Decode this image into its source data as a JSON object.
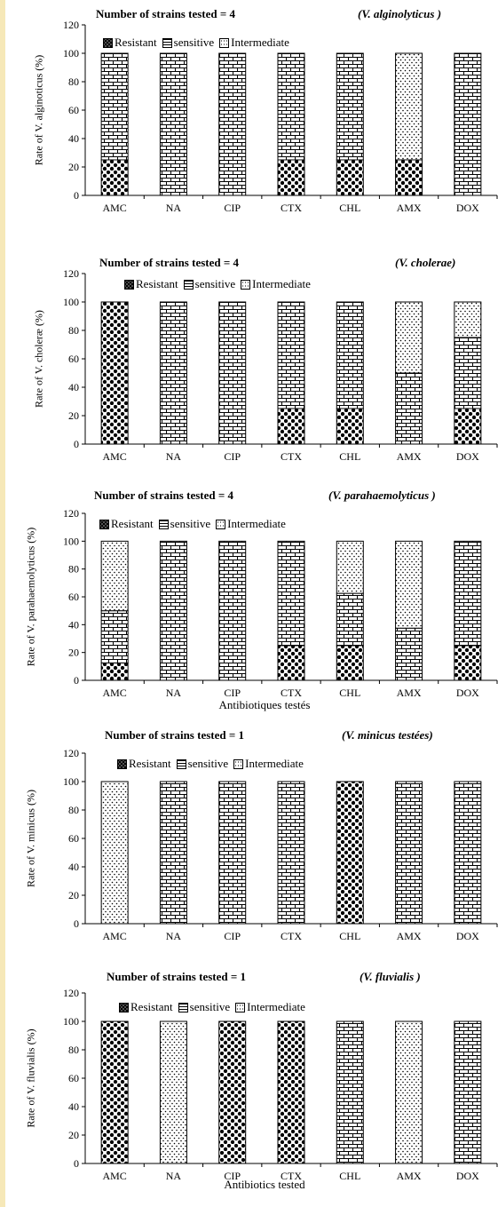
{
  "colors": {
    "page_edge": "#f6e8b8",
    "background": "#ffffff",
    "ink": "#000000"
  },
  "legend_labels": [
    "Resistant",
    "sensitive",
    "Intermediate"
  ],
  "chart_data": [
    {
      "type": "bar",
      "stacked": true,
      "title": "Number of strains tested  = 4",
      "species_label": "(V. alginolyticus )",
      "ylabel": "Rate of V. alginoticus (%)",
      "xlabel": "",
      "legend_position": "top",
      "categories": [
        "AMC",
        "NA",
        "CIP",
        "CTX",
        "CHL",
        "AMX",
        "DOX"
      ],
      "ylim": [
        0,
        120
      ],
      "yticks": [
        0,
        20,
        40,
        60,
        80,
        100,
        120
      ],
      "grid": false,
      "series": [
        {
          "name": "Resistant",
          "pattern": "checker",
          "values": [
            25,
            0,
            0,
            25,
            25,
            25,
            0
          ]
        },
        {
          "name": "sensitive",
          "pattern": "brick",
          "values": [
            75,
            100,
            100,
            75,
            75,
            0,
            100
          ]
        },
        {
          "name": "Intermediate",
          "pattern": "dots",
          "values": [
            0,
            0,
            0,
            0,
            0,
            75,
            0
          ]
        }
      ]
    },
    {
      "type": "bar",
      "stacked": true,
      "title": "Number of strains tested = 4",
      "species_label": "(V. cholerae)",
      "ylabel": "Rate of V. choleræ (%)",
      "xlabel": "",
      "legend_position": "top",
      "categories": [
        "AMC",
        "NA",
        "CIP",
        "CTX",
        "CHL",
        "AMX",
        "DOX"
      ],
      "ylim": [
        0,
        120
      ],
      "yticks": [
        0,
        20,
        40,
        60,
        80,
        100,
        120
      ],
      "grid": false,
      "series": [
        {
          "name": "Resistant",
          "pattern": "checker",
          "values": [
            100,
            0,
            0,
            25,
            25,
            0,
            25
          ]
        },
        {
          "name": "sensitive",
          "pattern": "brick",
          "values": [
            0,
            100,
            100,
            75,
            75,
            50,
            50
          ]
        },
        {
          "name": "Intermediate",
          "pattern": "dots",
          "values": [
            0,
            0,
            0,
            0,
            0,
            50,
            25
          ]
        }
      ]
    },
    {
      "type": "bar",
      "stacked": true,
      "title": "Number of strains tested   = 4",
      "species_label": "(V. parahaemolyticus )",
      "ylabel": "Rate of V. parahaemolyticus (%)",
      "xlabel": "Antibiotiques testés",
      "legend_position": "top",
      "categories": [
        "AMC",
        "NA",
        "CIP",
        "CTX",
        "CHL",
        "AMX",
        "DOX"
      ],
      "ylim": [
        0,
        120
      ],
      "yticks": [
        0,
        20,
        40,
        60,
        80,
        100,
        120
      ],
      "grid": false,
      "series": [
        {
          "name": "Resistant",
          "pattern": "checker",
          "values": [
            12.5,
            0,
            0,
            25,
            25,
            0,
            25
          ]
        },
        {
          "name": "sensitive",
          "pattern": "brick",
          "values": [
            37.5,
            100,
            100,
            75,
            37.5,
            37.5,
            75
          ]
        },
        {
          "name": "Intermediate",
          "pattern": "dots",
          "values": [
            50,
            0,
            0,
            0,
            37.5,
            62.5,
            0
          ]
        }
      ]
    },
    {
      "type": "bar",
      "stacked": true,
      "title": "Number of strains tested   = 1",
      "species_label": "(V. minicus testées)",
      "ylabel": "Rate of  V. minicus (%)",
      "xlabel": "",
      "legend_position": "top",
      "categories": [
        "AMC",
        "NA",
        "CIP",
        "CTX",
        "CHL",
        "AMX",
        "DOX"
      ],
      "ylim": [
        0,
        120
      ],
      "yticks": [
        0,
        20,
        40,
        60,
        80,
        100,
        120
      ],
      "grid": false,
      "series": [
        {
          "name": "Resistant",
          "pattern": "checker",
          "values": [
            0,
            0,
            0,
            0,
            100,
            0,
            0
          ]
        },
        {
          "name": "sensitive",
          "pattern": "brick",
          "values": [
            0,
            100,
            100,
            100,
            0,
            100,
            100
          ]
        },
        {
          "name": "Intermediate",
          "pattern": "dots",
          "values": [
            100,
            0,
            0,
            0,
            0,
            0,
            0
          ]
        }
      ]
    },
    {
      "type": "bar",
      "stacked": true,
      "title": "Number of strains tested    = 1",
      "species_label": "(V.  fluvialis )",
      "ylabel": "Rate of  V. fluvialis (%)",
      "xlabel": "Antibiotics  tested",
      "legend_position": "top",
      "categories": [
        "AMC",
        "NA",
        "CIP",
        "CTX",
        "CHL",
        "AMX",
        "DOX"
      ],
      "ylim": [
        0,
        120
      ],
      "yticks": [
        0,
        20,
        40,
        60,
        80,
        100,
        120
      ],
      "grid": false,
      "series": [
        {
          "name": "Resistant",
          "pattern": "checker",
          "values": [
            100,
            0,
            100,
            100,
            0,
            0,
            0
          ]
        },
        {
          "name": "sensitive",
          "pattern": "brick",
          "values": [
            0,
            0,
            0,
            0,
            100,
            0,
            100
          ]
        },
        {
          "name": "Intermediate",
          "pattern": "dots",
          "values": [
            0,
            100,
            0,
            0,
            0,
            100,
            0
          ]
        }
      ]
    }
  ]
}
